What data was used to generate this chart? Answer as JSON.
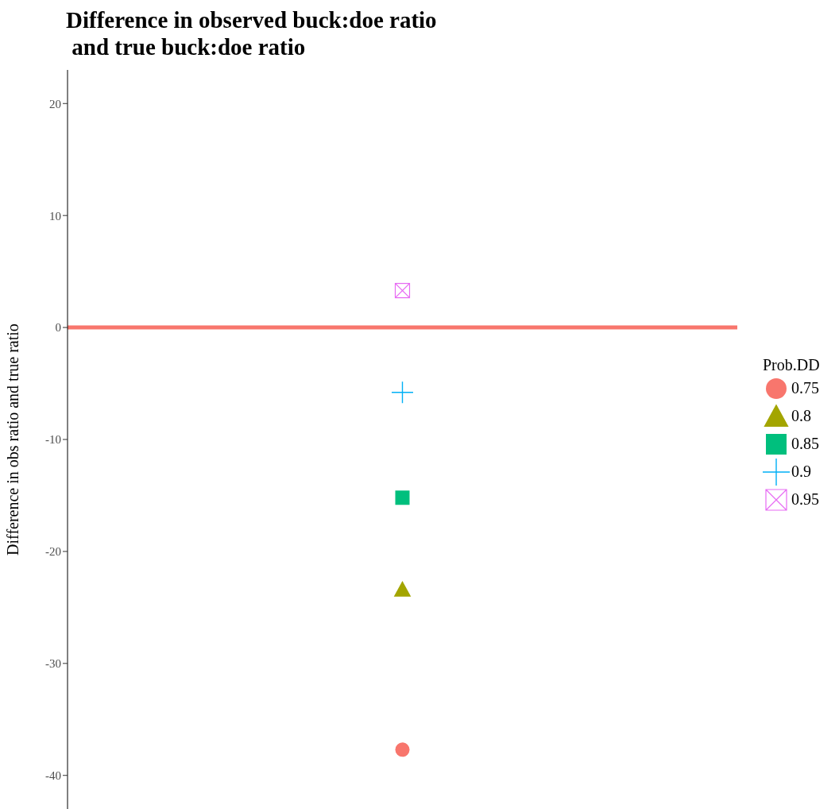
{
  "chart_data": {
    "type": "scatter",
    "title": "Difference in observed buck:doe ratio\n and true buck:doe ratio",
    "ylabel": "Difference in obs ratio and true ratio",
    "legend_title": "Prob.DD",
    "categories": [
      null
    ],
    "series": [
      {
        "name": "0.75",
        "color": "#f8766d",
        "marker": "circle",
        "values": [
          -37.7
        ]
      },
      {
        "name": "0.8",
        "color": "#a3a500",
        "marker": "triangle",
        "values": [
          -23.4
        ]
      },
      {
        "name": "0.85",
        "color": "#00bf7d",
        "marker": "square",
        "values": [
          -15.2
        ]
      },
      {
        "name": "0.9",
        "color": "#00b0f6",
        "marker": "cross",
        "values": [
          -5.8
        ]
      },
      {
        "name": "0.95",
        "color": "#e76bf3",
        "values": [
          3.3
        ]
      }
    ],
    "ylim": [
      -43,
      23
    ],
    "yticks": [
      -40,
      -30,
      -20,
      -10,
      0,
      10,
      20
    ],
    "grid": false,
    "legend": "right",
    "tick_labels": "y",
    "ref_lines": [
      {
        "axis": "y",
        "value": 0,
        "color": "#f8766d"
      }
    ]
  }
}
